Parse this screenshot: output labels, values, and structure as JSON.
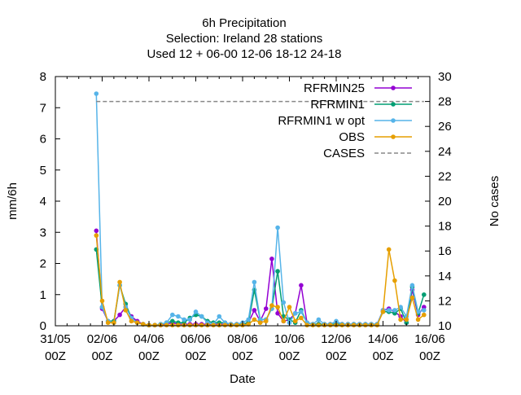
{
  "chart_data": {
    "type": "line",
    "title_lines": [
      "6h Precipitation",
      "Selection: Ireland      28 stations",
      "Used  12 + 06-00 12-06 18-12 24-18"
    ],
    "xlabel": "Date",
    "ylabel": "mm/6h",
    "y2label": "No cases",
    "xlim": [
      0,
      16
    ],
    "ylim": [
      0,
      8
    ],
    "y2lim": [
      10,
      30
    ],
    "x_ticks": [
      {
        "x": 0,
        "line1": "31/05",
        "line2": "00Z"
      },
      {
        "x": 2,
        "line1": "02/06",
        "line2": "00Z"
      },
      {
        "x": 4,
        "line1": "04/06",
        "line2": "00Z"
      },
      {
        "x": 6,
        "line1": "06/06",
        "line2": "00Z"
      },
      {
        "x": 8,
        "line1": "08/06",
        "line2": "00Z"
      },
      {
        "x": 10,
        "line1": "10/06",
        "line2": "00Z"
      },
      {
        "x": 12,
        "line1": "12/06",
        "line2": "00Z"
      },
      {
        "x": 14,
        "line1": "14/06",
        "line2": "00Z"
      },
      {
        "x": 16,
        "line1": "16/06",
        "line2": "00Z"
      }
    ],
    "y_ticks": [
      "0",
      "1",
      "2",
      "3",
      "4",
      "5",
      "6",
      "7",
      "8"
    ],
    "y2_ticks": [
      "10",
      "12",
      "14",
      "16",
      "18",
      "20",
      "22",
      "24",
      "26",
      "28",
      "30"
    ],
    "legend_position": "top-right",
    "x": [
      1.75,
      2.0,
      2.25,
      2.5,
      2.75,
      3.0,
      3.25,
      3.5,
      3.75,
      4.0,
      4.25,
      4.5,
      4.75,
      5.0,
      5.25,
      5.5,
      5.75,
      6.0,
      6.25,
      6.5,
      6.75,
      7.0,
      7.25,
      7.5,
      7.75,
      8.0,
      8.25,
      8.5,
      8.75,
      9.0,
      9.25,
      9.5,
      9.75,
      10.0,
      10.25,
      10.5,
      10.75,
      11.0,
      11.25,
      11.5,
      11.75,
      12.0,
      12.25,
      12.5,
      12.75,
      13.0,
      13.25,
      13.5,
      13.75,
      14.0,
      14.25,
      14.5,
      14.75,
      15.0,
      15.25,
      15.5,
      15.75
    ],
    "series": [
      {
        "name": "RFRMIN25",
        "color": "#9400d3",
        "axis": "y",
        "style": "line-points",
        "values": [
          3.05,
          0.55,
          0.15,
          0.15,
          0.35,
          0.6,
          0.3,
          0.15,
          0.05,
          0.02,
          0.02,
          0.02,
          0.05,
          0.1,
          0.05,
          0.05,
          0.05,
          0.05,
          0.05,
          0.05,
          0.05,
          0.05,
          0.05,
          0.05,
          0.05,
          0.05,
          0.1,
          0.5,
          0.15,
          0.55,
          2.15,
          0.4,
          0.15,
          0.2,
          0.4,
          1.3,
          0.1,
          0.05,
          0.05,
          0.05,
          0.05,
          0.05,
          0.05,
          0.05,
          0.05,
          0.05,
          0.05,
          0.05,
          0.05,
          0.5,
          0.55,
          0.45,
          0.3,
          0.1,
          1.15,
          0.35,
          0.6
        ]
      },
      {
        "name": "RFRMIN1",
        "color": "#009e73",
        "axis": "y",
        "style": "line-points",
        "values": [
          2.45,
          0.6,
          0.15,
          0.15,
          1.3,
          0.7,
          0.25,
          0.1,
          0.05,
          0.02,
          0.02,
          0.05,
          0.1,
          0.15,
          0.1,
          0.1,
          0.25,
          0.35,
          0.3,
          0.15,
          0.1,
          0.1,
          0.1,
          0.05,
          0.05,
          0.05,
          0.1,
          1.15,
          0.2,
          0.2,
          0.55,
          1.75,
          0.3,
          0.2,
          0.1,
          0.5,
          0.1,
          0.05,
          0.05,
          0.05,
          0.05,
          0.05,
          0.05,
          0.05,
          0.05,
          0.05,
          0.05,
          0.05,
          0.05,
          0.45,
          0.45,
          0.4,
          0.55,
          0.1,
          1.25,
          0.4,
          1.0
        ]
      },
      {
        "name": "RFRMIN1 w opt",
        "color": "#56b4e9",
        "axis": "y",
        "style": "line-points",
        "values": [
          7.45,
          0.6,
          0.15,
          0.1,
          1.3,
          0.6,
          0.25,
          0.1,
          0.05,
          0.02,
          0.02,
          0.05,
          0.1,
          0.35,
          0.3,
          0.2,
          0.2,
          0.45,
          0.3,
          0.1,
          0.05,
          0.3,
          0.1,
          0.05,
          0.05,
          0.1,
          0.2,
          1.4,
          0.2,
          0.2,
          0.55,
          3.15,
          0.75,
          0.1,
          0.4,
          0.45,
          0.1,
          0.05,
          0.2,
          0.05,
          0.05,
          0.15,
          0.05,
          0.05,
          0.05,
          0.05,
          0.05,
          0.05,
          0.05,
          0.5,
          0.5,
          0.5,
          0.6,
          0.3,
          1.3,
          0.45,
          0.5
        ]
      },
      {
        "name": "OBS",
        "color": "#e69f00",
        "axis": "y",
        "style": "line-points",
        "values": [
          2.9,
          0.8,
          0.1,
          0.1,
          1.4,
          0.5,
          0.15,
          0.1,
          0.05,
          0.02,
          0.02,
          0.02,
          0.02,
          0.02,
          0.02,
          0.02,
          0.02,
          0.02,
          0.02,
          0.02,
          0.02,
          0.02,
          0.02,
          0.02,
          0.02,
          0.02,
          0.05,
          0.2,
          0.1,
          0.15,
          0.65,
          0.6,
          0.15,
          0.6,
          0.15,
          0.25,
          0.02,
          0.02,
          0.02,
          0.02,
          0.02,
          0.02,
          0.02,
          0.02,
          0.02,
          0.02,
          0.02,
          0.02,
          0.02,
          0.45,
          2.45,
          1.45,
          0.2,
          0.2,
          0.9,
          0.2,
          0.35
        ]
      },
      {
        "name": "CASES",
        "color": "#888888",
        "axis": "y2",
        "style": "dashed",
        "values": [
          28,
          28,
          28,
          28,
          28,
          28,
          28,
          28,
          28,
          28,
          28,
          28,
          28,
          28,
          28,
          28,
          28,
          28,
          28,
          28,
          28,
          28,
          28,
          28,
          28,
          28,
          28,
          28,
          28,
          28,
          28,
          28,
          28,
          28,
          28,
          28,
          28,
          28,
          28,
          28,
          28,
          28,
          28,
          28,
          28,
          28,
          28,
          28,
          28,
          28,
          28,
          28,
          28,
          28,
          28,
          28,
          28
        ]
      }
    ]
  }
}
